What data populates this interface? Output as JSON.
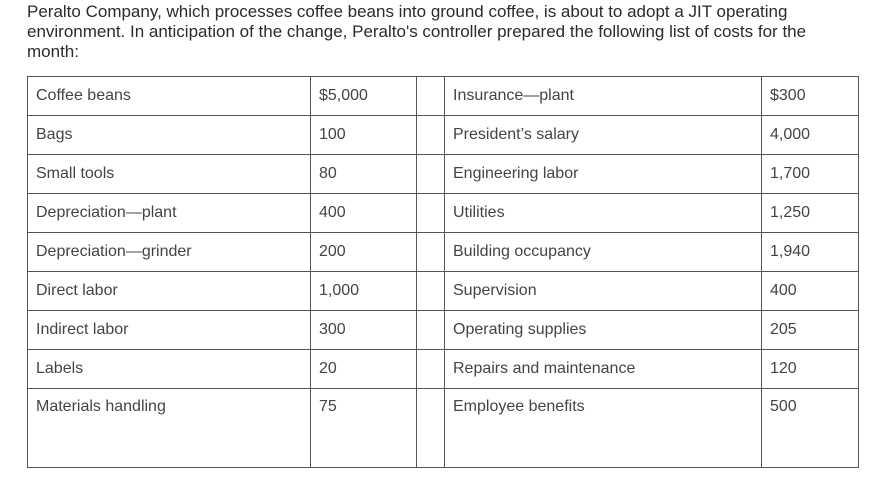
{
  "intro": "Peralto Company, which processes coffee beans into ground coffee, is about to adopt a JIT operating environment. In anticipation of the change, Peralto's controller prepared the following list of costs for the month:",
  "rows": [
    {
      "left_item": "Coffee beans",
      "left_amount": "$5,000",
      "right_item": "Insurance—plant",
      "right_amount": "$300"
    },
    {
      "left_item": "Bags",
      "left_amount": "100",
      "right_item": "President’s salary",
      "right_amount": "4,000"
    },
    {
      "left_item": "Small tools",
      "left_amount": "80",
      "right_item": "Engineering labor",
      "right_amount": "1,700"
    },
    {
      "left_item": "Depreciation—plant",
      "left_amount": "400",
      "right_item": "Utilities",
      "right_amount": "1,250"
    },
    {
      "left_item": "Depreciation—grinder",
      "left_amount": "200",
      "right_item": "Building occupancy",
      "right_amount": "1,940"
    },
    {
      "left_item": "Direct labor",
      "left_amount": "1,000",
      "right_item": "Supervision",
      "right_amount": "400"
    },
    {
      "left_item": "Indirect labor",
      "left_amount": "300",
      "right_item": "Operating supplies",
      "right_amount": "205"
    },
    {
      "left_item": "Labels",
      "left_amount": "20",
      "right_item": "Repairs and maintenance",
      "right_amount": "120"
    },
    {
      "left_item": "Materials handling",
      "left_amount": "75",
      "right_item": "Employee benefits",
      "right_amount": "500"
    }
  ]
}
